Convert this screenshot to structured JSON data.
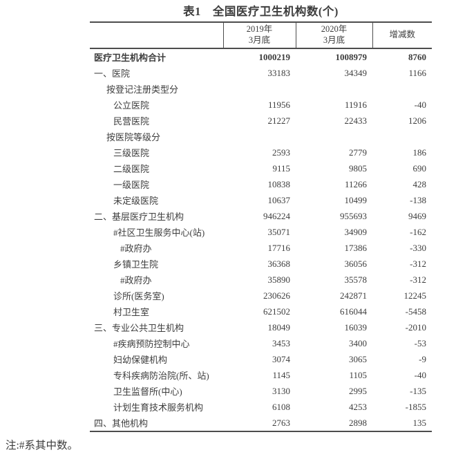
{
  "title": "表1　全国医疗卫生机构数(个)",
  "note": "注:#系其中数。",
  "colors": {
    "text": "#3d3d3d",
    "border": "#4c4c4c",
    "background": "#ffffff"
  },
  "table": {
    "columns": [
      "",
      "2019年\n3月底",
      "2020年\n3月底",
      "增减数"
    ],
    "rows": [
      {
        "label": "医疗卫生机构合计",
        "v2019": "1000219",
        "v2020": "1008979",
        "change": "8760",
        "level": 0,
        "bold": true
      },
      {
        "label": "一、医院",
        "v2019": "33183",
        "v2020": "34349",
        "change": "1166",
        "level": 0,
        "bold": false
      },
      {
        "label": "按登记注册类型分",
        "v2019": "",
        "v2020": "",
        "change": "",
        "level": 1,
        "bold": false
      },
      {
        "label": "公立医院",
        "v2019": "11956",
        "v2020": "11916",
        "change": "-40",
        "level": 2,
        "bold": false
      },
      {
        "label": "民营医院",
        "v2019": "21227",
        "v2020": "22433",
        "change": "1206",
        "level": 2,
        "bold": false
      },
      {
        "label": "按医院等级分",
        "v2019": "",
        "v2020": "",
        "change": "",
        "level": 1,
        "bold": false
      },
      {
        "label": "三级医院",
        "v2019": "2593",
        "v2020": "2779",
        "change": "186",
        "level": 2,
        "bold": false
      },
      {
        "label": "二级医院",
        "v2019": "9115",
        "v2020": "9805",
        "change": "690",
        "level": 2,
        "bold": false
      },
      {
        "label": "一级医院",
        "v2019": "10838",
        "v2020": "11266",
        "change": "428",
        "level": 2,
        "bold": false
      },
      {
        "label": "未定级医院",
        "v2019": "10637",
        "v2020": "10499",
        "change": "-138",
        "level": 2,
        "bold": false
      },
      {
        "label": "二、基层医疗卫生机构",
        "v2019": "946224",
        "v2020": "955693",
        "change": "9469",
        "level": 0,
        "bold": false
      },
      {
        "label": "#社区卫生服务中心(站)",
        "v2019": "35071",
        "v2020": "34909",
        "change": "-162",
        "level": 2,
        "bold": false
      },
      {
        "label": "#政府办",
        "v2019": "17716",
        "v2020": "17386",
        "change": "-330",
        "level": 3,
        "bold": false
      },
      {
        "label": "乡镇卫生院",
        "v2019": "36368",
        "v2020": "36056",
        "change": "-312",
        "level": 2,
        "bold": false
      },
      {
        "label": "#政府办",
        "v2019": "35890",
        "v2020": "35578",
        "change": "-312",
        "level": 3,
        "bold": false
      },
      {
        "label": "诊所(医务室)",
        "v2019": "230626",
        "v2020": "242871",
        "change": "12245",
        "level": 2,
        "bold": false
      },
      {
        "label": "村卫生室",
        "v2019": "621502",
        "v2020": "616044",
        "change": "-5458",
        "level": 2,
        "bold": false
      },
      {
        "label": "三、专业公共卫生机构",
        "v2019": "18049",
        "v2020": "16039",
        "change": "-2010",
        "level": 0,
        "bold": false
      },
      {
        "label": "#疾病预防控制中心",
        "v2019": "3453",
        "v2020": "3400",
        "change": "-53",
        "level": 2,
        "bold": false
      },
      {
        "label": "妇幼保健机构",
        "v2019": "3074",
        "v2020": "3065",
        "change": "-9",
        "level": 2,
        "bold": false
      },
      {
        "label": "专科疾病防治院(所、站)",
        "v2019": "1145",
        "v2020": "1105",
        "change": "-40",
        "level": 2,
        "bold": false
      },
      {
        "label": "卫生监督所(中心)",
        "v2019": "3130",
        "v2020": "2995",
        "change": "-135",
        "level": 2,
        "bold": false
      },
      {
        "label": "计划生育技术服务机构",
        "v2019": "6108",
        "v2020": "4253",
        "change": "-1855",
        "level": 2,
        "bold": false
      },
      {
        "label": "四、其他机构",
        "v2019": "2763",
        "v2020": "2898",
        "change": "135",
        "level": 0,
        "bold": false
      }
    ]
  }
}
